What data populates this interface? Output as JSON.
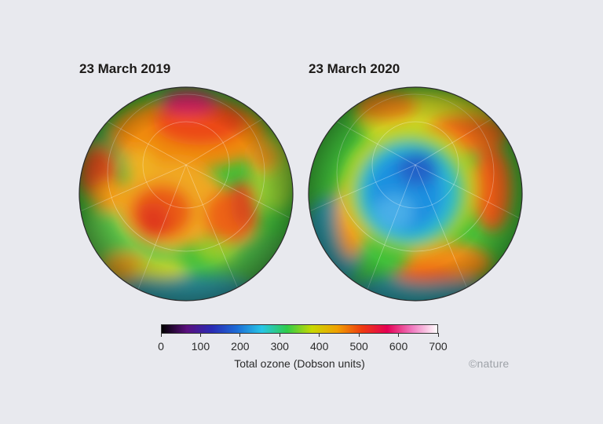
{
  "panels": [
    {
      "title": "23 March 2019"
    },
    {
      "title": "23 March 2020"
    }
  ],
  "legend": {
    "label": "Total ozone (Dobson units)",
    "ticks": [
      "0",
      "100",
      "200",
      "300",
      "400",
      "500",
      "600",
      "700"
    ],
    "min": 0,
    "max": 700,
    "colors": [
      "#000000",
      "#5a0f7e",
      "#2a2ab4",
      "#1c6cd6",
      "#27c6e6",
      "#2fcc4a",
      "#c8d800",
      "#f0a000",
      "#ee3a10",
      "#e40054",
      "#f07ac0",
      "#ffffff"
    ]
  },
  "credit": "©nature"
}
